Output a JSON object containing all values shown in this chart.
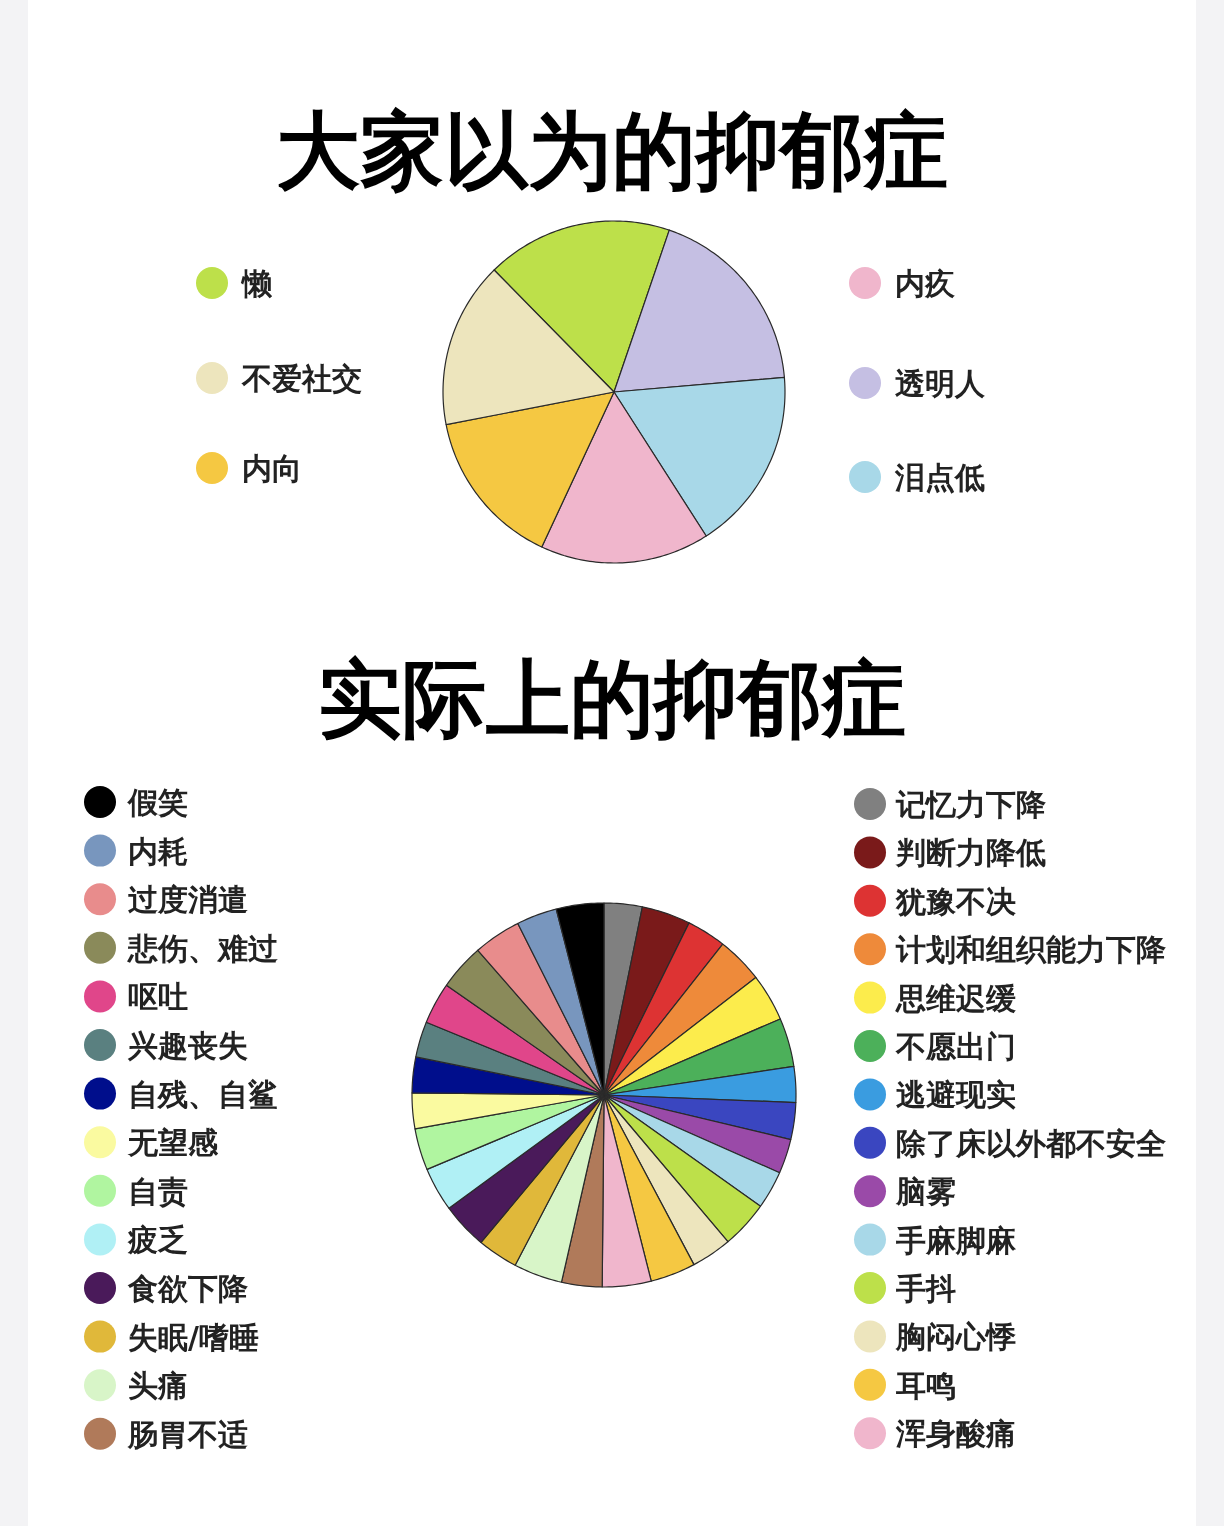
{
  "chart_data": [
    {
      "type": "pie",
      "title": "大家以为的抑郁症",
      "legend": "left",
      "categories": [
        "懒",
        "透明人",
        "泪点低",
        "内疚",
        "内向",
        "不爱社交"
      ],
      "values": [
        17.6,
        18.4,
        17.3,
        16.0,
        15.0,
        15.7
      ],
      "colors": [
        "#bde04a",
        "#c5bfe3",
        "#a8d8e8",
        "#f0b6cc",
        "#f5c842",
        "#ede5bd"
      ]
    },
    {
      "type": "pie",
      "title": "实际上的抑郁症",
      "legend": "bottom right",
      "categories": [
        "记忆力下降",
        "判断力降低",
        "犹豫不决",
        "计划和组织能力下降",
        "思维迟缓",
        "不愿出门",
        "逃避现实",
        "除了床以外都不安全",
        "脑雾",
        "手麻脚麻",
        "手抖",
        "胸闷心悸",
        "耳鸣",
        "浑身酸痛",
        "肠胃不适",
        "头痛",
        "失眠/嗜睡",
        "食欲下降",
        "疲乏",
        "自责",
        "无望感",
        "自残、自鲨",
        "兴趣丧失",
        "呕吐",
        "悲伤、难过",
        "过度消遣",
        "内耗",
        "假笑"
      ],
      "values": [
        3.2,
        4.1,
        3.3,
        3.9,
        4.0,
        4.1,
        3.0,
        3.1,
        2.9,
        3.2,
        4.0,
        3.4,
        3.8,
        4.1,
        3.4,
        4.1,
        3.4,
        3.9,
        3.7,
        3.5,
        3.0,
        3.0,
        3.0,
        3.5,
        3.9,
        4.0,
        3.4,
        4.0
      ],
      "colors": [
        "#808080",
        "#7a1a1a",
        "#dd3333",
        "#ee8a3a",
        "#fcec4c",
        "#4cb05a",
        "#3a9ce0",
        "#3a46c0",
        "#9a4aa8",
        "#a8d8e8",
        "#bde04a",
        "#ede5bd",
        "#f5c842",
        "#f0b6cc",
        "#b07a5a",
        "#d8f5c8",
        "#e0b83a",
        "#4a1a5a",
        "#b0f0f5",
        "#b0f5a0",
        "#fafaa0",
        "#000e8c",
        "#5a8080",
        "#e0468a",
        "#8a8a5a",
        "#e88c8c",
        "#7896be",
        "#000000"
      ]
    }
  ]
}
